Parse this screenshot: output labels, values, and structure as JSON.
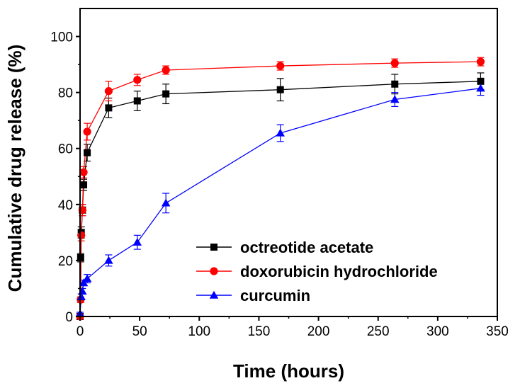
{
  "chart_data": {
    "type": "line",
    "title": "",
    "xlabel": "Time (hours)",
    "ylabel": "Cumulative drug release (%)",
    "xlim": [
      0,
      350
    ],
    "ylim": [
      0,
      110
    ],
    "xticks": [
      0,
      50,
      100,
      150,
      200,
      250,
      300,
      350
    ],
    "yticks": [
      0,
      20,
      40,
      60,
      80,
      100
    ],
    "grid": false,
    "legend_position": "bottom-right",
    "series": [
      {
        "name": "octreotide acetate",
        "color": "#000000",
        "marker": "square",
        "points": [
          {
            "x": 0,
            "y": 0,
            "err": 0
          },
          {
            "x": 0.5,
            "y": 21,
            "err": 1.5
          },
          {
            "x": 1,
            "y": 30,
            "err": 2
          },
          {
            "x": 2,
            "y": 38,
            "err": 2
          },
          {
            "x": 3,
            "y": 47,
            "err": 2
          },
          {
            "x": 6,
            "y": 58.5,
            "err": 3
          },
          {
            "x": 24,
            "y": 74.5,
            "err": 3.5
          },
          {
            "x": 48,
            "y": 77,
            "err": 3.5
          },
          {
            "x": 72,
            "y": 79.5,
            "err": 3.5
          },
          {
            "x": 168,
            "y": 81,
            "err": 4
          },
          {
            "x": 264,
            "y": 83,
            "err": 3.5
          },
          {
            "x": 336,
            "y": 84,
            "err": 3
          }
        ]
      },
      {
        "name": "doxorubicin hydrochloride",
        "color": "#ff0000",
        "marker": "circle",
        "points": [
          {
            "x": 0,
            "y": 0,
            "err": 0
          },
          {
            "x": 0.5,
            "y": 6,
            "err": 1
          },
          {
            "x": 1,
            "y": 29,
            "err": 2
          },
          {
            "x": 2,
            "y": 38,
            "err": 2
          },
          {
            "x": 3,
            "y": 51.5,
            "err": 2
          },
          {
            "x": 6,
            "y": 66,
            "err": 3
          },
          {
            "x": 24,
            "y": 80.5,
            "err": 3.5
          },
          {
            "x": 48,
            "y": 84.5,
            "err": 2
          },
          {
            "x": 72,
            "y": 88,
            "err": 1.5
          },
          {
            "x": 168,
            "y": 89.5,
            "err": 1.5
          },
          {
            "x": 264,
            "y": 90.5,
            "err": 1.5
          },
          {
            "x": 336,
            "y": 91,
            "err": 1.5
          }
        ]
      },
      {
        "name": "curcumin",
        "color": "#0000ff",
        "marker": "triangle",
        "points": [
          {
            "x": 0,
            "y": 1,
            "err": 0.5
          },
          {
            "x": 1,
            "y": 7,
            "err": 1
          },
          {
            "x": 2,
            "y": 9,
            "err": 1
          },
          {
            "x": 3,
            "y": 12,
            "err": 1
          },
          {
            "x": 6,
            "y": 13.5,
            "err": 1.5
          },
          {
            "x": 24,
            "y": 20,
            "err": 2
          },
          {
            "x": 48,
            "y": 26.5,
            "err": 2.5
          },
          {
            "x": 72,
            "y": 40.5,
            "err": 3.5
          },
          {
            "x": 168,
            "y": 65.5,
            "err": 3
          },
          {
            "x": 264,
            "y": 77.5,
            "err": 2.5
          },
          {
            "x": 336,
            "y": 81.5,
            "err": 2.5
          }
        ]
      }
    ]
  }
}
